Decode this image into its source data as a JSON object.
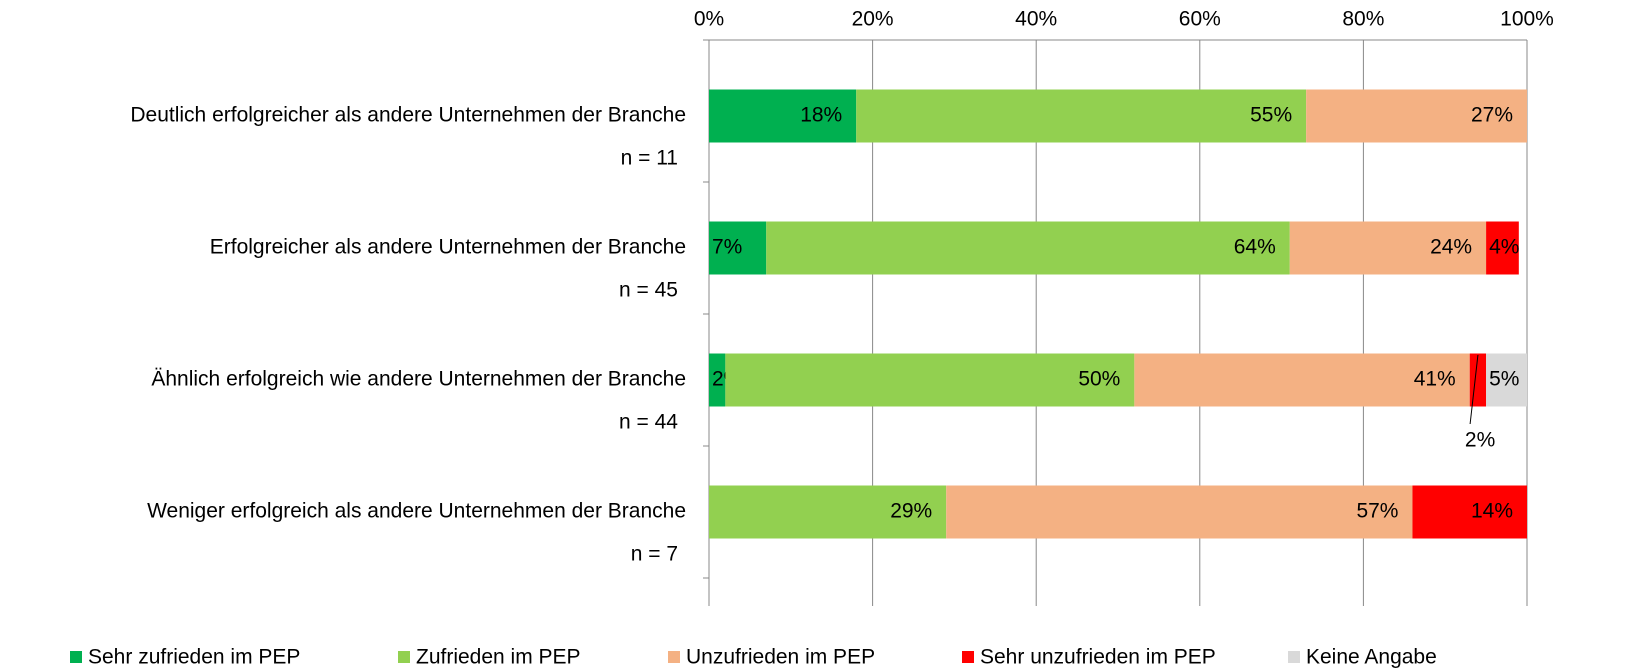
{
  "chart_data": {
    "type": "stacked-bar-horizontal",
    "categories": [
      "Deutlich erfolgreicher als andere Unternehmen der Branche",
      "Erfolgreicher als andere Unternehmen der Branche",
      "Ähnlich erfolgreich wie andere Unternehmen der Branche",
      "Weniger erfolgreich als andere Unternehmen der Branche"
    ],
    "n_labels": [
      "n = 11",
      "n = 45",
      "n = 44",
      "n = 7"
    ],
    "series": [
      {
        "name": "Sehr zufrieden im PEP",
        "color": "#00b050",
        "values": [
          18,
          7,
          2,
          null
        ],
        "value_labels": [
          "18%",
          "7%",
          "2%",
          null
        ]
      },
      {
        "name": "Zufrieden im PEP",
        "color": "#92d050",
        "values": [
          55,
          64,
          50,
          29
        ],
        "value_labels": [
          "55%",
          "64%",
          "50%",
          "29%"
        ]
      },
      {
        "name": "Unzufrieden im PEP",
        "color": "#f4b183",
        "values": [
          27,
          24,
          41,
          57
        ],
        "value_labels": [
          "27%",
          "24%",
          "41%",
          "57%"
        ]
      },
      {
        "name": "Sehr unzufrieden im PEP",
        "color": "#ff0000",
        "values": [
          null,
          4,
          2,
          14
        ],
        "value_labels": [
          null,
          "4%",
          "2%",
          "14%"
        ]
      },
      {
        "name": "Keine Angabe",
        "color": "#d9d9d9",
        "values": [
          null,
          null,
          5,
          null
        ],
        "value_labels": [
          null,
          null,
          "5%",
          null
        ]
      }
    ],
    "xlim": [
      0,
      100
    ],
    "xticks": [
      {
        "value": 0,
        "label": "0%"
      },
      {
        "value": 20,
        "label": "20%"
      },
      {
        "value": 40,
        "label": "40%"
      },
      {
        "value": 60,
        "label": "60%"
      },
      {
        "value": 80,
        "label": "80%"
      },
      {
        "value": 100,
        "label": "100%"
      }
    ],
    "grid": true,
    "legend": "bottom"
  }
}
